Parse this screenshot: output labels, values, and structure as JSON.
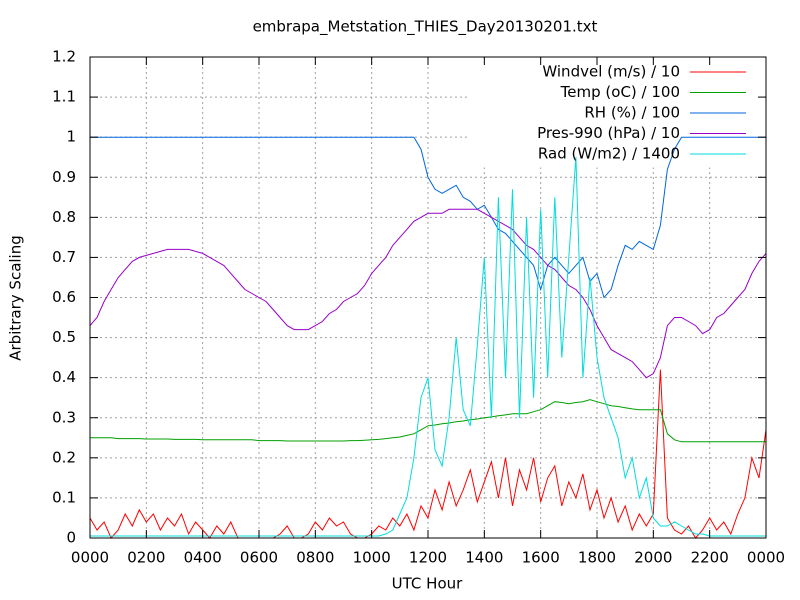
{
  "chart_data": {
    "type": "line",
    "title": "embrapa_Metstation_THIES_Day20130201.txt",
    "xlabel": "UTC Hour",
    "ylabel": "Arbitrary Scaling",
    "xlim": [
      0,
      24
    ],
    "ylim": [
      0,
      1.2
    ],
    "xticks": [
      {
        "value": 0,
        "label": "0000"
      },
      {
        "value": 2,
        "label": "0200"
      },
      {
        "value": 4,
        "label": "0400"
      },
      {
        "value": 6,
        "label": "0600"
      },
      {
        "value": 8,
        "label": "0800"
      },
      {
        "value": 10,
        "label": "1000"
      },
      {
        "value": 12,
        "label": "1200"
      },
      {
        "value": 14,
        "label": "1400"
      },
      {
        "value": 16,
        "label": "1600"
      },
      {
        "value": 18,
        "label": "1800"
      },
      {
        "value": 20,
        "label": "2000"
      },
      {
        "value": 22,
        "label": "2200"
      },
      {
        "value": 24,
        "label": "0000"
      }
    ],
    "yticks": [
      0,
      0.1,
      0.2,
      0.3,
      0.4,
      0.5,
      0.6,
      0.7,
      0.8,
      0.9,
      1,
      1.1,
      1.2
    ],
    "grid": true,
    "legend": "top-right",
    "x": [
      0,
      0.25,
      0.5,
      0.75,
      1,
      1.25,
      1.5,
      1.75,
      2,
      2.25,
      2.5,
      2.75,
      3,
      3.25,
      3.5,
      3.75,
      4,
      4.25,
      4.5,
      4.75,
      5,
      5.25,
      5.5,
      5.75,
      6,
      6.25,
      6.5,
      6.75,
      7,
      7.25,
      7.5,
      7.75,
      8,
      8.25,
      8.5,
      8.75,
      9,
      9.25,
      9.5,
      9.75,
      10,
      10.25,
      10.5,
      10.75,
      11,
      11.25,
      11.5,
      11.75,
      12,
      12.25,
      12.5,
      12.75,
      13,
      13.25,
      13.5,
      13.75,
      14,
      14.25,
      14.5,
      14.75,
      15,
      15.25,
      15.5,
      15.75,
      16,
      16.25,
      16.5,
      16.75,
      17,
      17.25,
      17.5,
      17.75,
      18,
      18.25,
      18.5,
      18.75,
      19,
      19.25,
      19.5,
      19.75,
      20,
      20.25,
      20.5,
      20.75,
      21,
      21.25,
      21.5,
      21.75,
      22,
      22.25,
      22.5,
      22.75,
      23,
      23.25,
      23.5,
      23.75,
      24
    ],
    "series": [
      {
        "name": "Windvel (m/s) / 10",
        "color": "#ff0000",
        "values": [
          0.05,
          0.02,
          0.04,
          0,
          0.02,
          0.06,
          0.03,
          0.07,
          0.04,
          0.06,
          0.02,
          0.05,
          0.03,
          0.06,
          0.01,
          0.04,
          0.02,
          0,
          0.03,
          0.01,
          0.04,
          0,
          0,
          0,
          0,
          0,
          0,
          0.01,
          0.03,
          0,
          0,
          0.01,
          0.04,
          0.02,
          0.05,
          0.03,
          0.04,
          0.01,
          0,
          0,
          0.01,
          0.03,
          0.02,
          0.05,
          0.03,
          0.06,
          0.02,
          0.08,
          0.05,
          0.12,
          0.07,
          0.14,
          0.08,
          0.12,
          0.17,
          0.09,
          0.14,
          0.19,
          0.1,
          0.2,
          0.08,
          0.17,
          0.12,
          0.2,
          0.09,
          0.15,
          0.18,
          0.08,
          0.14,
          0.1,
          0.16,
          0.07,
          0.12,
          0.05,
          0.1,
          0.04,
          0.08,
          0.02,
          0.06,
          0.03,
          0.06,
          0.42,
          0.05,
          0.02,
          0.01,
          0.03,
          0,
          0.02,
          0.05,
          0.02,
          0.04,
          0.01,
          0.06,
          0.1,
          0.2,
          0.15,
          0.27
        ]
      },
      {
        "name": "Temp (oC) / 100",
        "color": "#00a000",
        "values": [
          0.25,
          0.25,
          0.25,
          0.25,
          0.248,
          0.248,
          0.248,
          0.248,
          0.247,
          0.247,
          0.247,
          0.247,
          0.246,
          0.246,
          0.246,
          0.246,
          0.245,
          0.245,
          0.245,
          0.245,
          0.245,
          0.245,
          0.245,
          0.245,
          0.243,
          0.243,
          0.243,
          0.243,
          0.242,
          0.242,
          0.242,
          0.242,
          0.242,
          0.242,
          0.242,
          0.242,
          0.242,
          0.243,
          0.243,
          0.244,
          0.245,
          0.246,
          0.248,
          0.25,
          0.252,
          0.256,
          0.26,
          0.27,
          0.28,
          0.282,
          0.285,
          0.287,
          0.29,
          0.292,
          0.295,
          0.297,
          0.3,
          0.302,
          0.305,
          0.307,
          0.31,
          0.31,
          0.31,
          0.315,
          0.32,
          0.33,
          0.34,
          0.338,
          0.335,
          0.338,
          0.34,
          0.345,
          0.34,
          0.335,
          0.33,
          0.328,
          0.325,
          0.322,
          0.32,
          0.32,
          0.32,
          0.32,
          0.26,
          0.245,
          0.24,
          0.24,
          0.24,
          0.24,
          0.24,
          0.24,
          0.24,
          0.24,
          0.24,
          0.24,
          0.24,
          0.24,
          0.24
        ]
      },
      {
        "name": "RH (%) / 100",
        "color": "#0066dd",
        "values": [
          1,
          1,
          1,
          1,
          1,
          1,
          1,
          1,
          1,
          1,
          1,
          1,
          1,
          1,
          1,
          1,
          1,
          1,
          1,
          1,
          1,
          1,
          1,
          1,
          1,
          1,
          1,
          1,
          1,
          1,
          1,
          1,
          1,
          1,
          1,
          1,
          1,
          1,
          1,
          1,
          1,
          1,
          1,
          1,
          1,
          1,
          1,
          0.97,
          0.9,
          0.87,
          0.86,
          0.87,
          0.88,
          0.85,
          0.84,
          0.82,
          0.83,
          0.8,
          0.77,
          0.76,
          0.74,
          0.72,
          0.7,
          0.68,
          0.62,
          0.68,
          0.7,
          0.68,
          0.66,
          0.68,
          0.7,
          0.64,
          0.66,
          0.6,
          0.62,
          0.68,
          0.73,
          0.72,
          0.74,
          0.73,
          0.72,
          0.78,
          0.92,
          0.97,
          1,
          1,
          1,
          1,
          1,
          1,
          1,
          1,
          1,
          1,
          1,
          1,
          1
        ]
      },
      {
        "name": "Pres-990 (hPa) / 10",
        "color": "#9900cc",
        "values": [
          0.53,
          0.55,
          0.59,
          0.62,
          0.65,
          0.67,
          0.69,
          0.7,
          0.705,
          0.71,
          0.715,
          0.72,
          0.72,
          0.72,
          0.72,
          0.715,
          0.71,
          0.7,
          0.69,
          0.68,
          0.66,
          0.64,
          0.62,
          0.61,
          0.6,
          0.59,
          0.57,
          0.55,
          0.53,
          0.52,
          0.52,
          0.52,
          0.53,
          0.54,
          0.56,
          0.57,
          0.59,
          0.6,
          0.61,
          0.63,
          0.66,
          0.68,
          0.7,
          0.73,
          0.75,
          0.77,
          0.79,
          0.8,
          0.81,
          0.81,
          0.81,
          0.82,
          0.82,
          0.82,
          0.82,
          0.82,
          0.81,
          0.8,
          0.79,
          0.78,
          0.77,
          0.75,
          0.73,
          0.72,
          0.7,
          0.68,
          0.67,
          0.65,
          0.63,
          0.62,
          0.6,
          0.57,
          0.53,
          0.5,
          0.47,
          0.46,
          0.45,
          0.44,
          0.42,
          0.4,
          0.41,
          0.45,
          0.53,
          0.55,
          0.55,
          0.54,
          0.53,
          0.51,
          0.52,
          0.55,
          0.56,
          0.58,
          0.6,
          0.62,
          0.66,
          0.69,
          0.71
        ]
      },
      {
        "name": "Rad (W/m2) / 1400",
        "color": "#00dddd",
        "values": [
          0.005,
          0.005,
          0.005,
          0.005,
          0.005,
          0.005,
          0.005,
          0.005,
          0.005,
          0.005,
          0.005,
          0.005,
          0.005,
          0.005,
          0.005,
          0.005,
          0.005,
          0.005,
          0.005,
          0.005,
          0.005,
          0.005,
          0.005,
          0.005,
          0.005,
          0.005,
          0.005,
          0.005,
          0.005,
          0.005,
          0.005,
          0.005,
          0.005,
          0.005,
          0.005,
          0.005,
          0.005,
          0.005,
          0.005,
          0.005,
          0.005,
          0.005,
          0.01,
          0.02,
          0.06,
          0.1,
          0.2,
          0.35,
          0.4,
          0.22,
          0.18,
          0.3,
          0.5,
          0.32,
          0.28,
          0.48,
          0.7,
          0.3,
          0.85,
          0.4,
          0.87,
          0.3,
          0.8,
          0.35,
          0.82,
          0.4,
          0.85,
          0.45,
          0.7,
          0.95,
          0.4,
          0.65,
          0.45,
          0.35,
          0.3,
          0.25,
          0.15,
          0.2,
          0.1,
          0.15,
          0.05,
          0.03,
          0.03,
          0.04,
          0.03,
          0.02,
          0.01,
          0.01,
          0.005,
          0.005,
          0.005,
          0.005,
          0.005,
          0.005,
          0.005,
          0.005,
          0.005
        ]
      }
    ]
  }
}
